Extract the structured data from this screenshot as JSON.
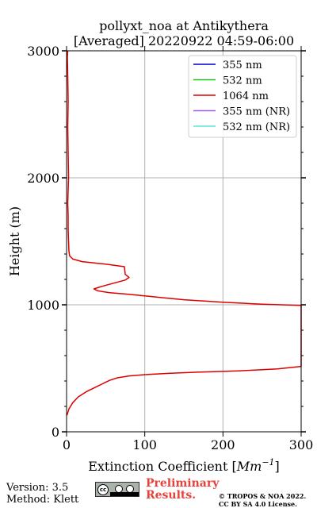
{
  "chart_data": {
    "type": "line",
    "title_line1": "pollyxt_noa at Antikythera",
    "title_line2": "[Averaged] 20220922 04:59-06:00",
    "xlabel_prefix": "Extinction Coefficient [",
    "xlabel_unit_base": "Mm",
    "xlabel_unit_exp": "−1",
    "xlabel_suffix": "]",
    "ylabel": "Height (m)",
    "xlim": [
      0,
      300
    ],
    "ylim": [
      0,
      3000
    ],
    "x_ticks": [
      "0",
      "100",
      "200",
      "300"
    ],
    "y_ticks": [
      "0",
      "1000",
      "2000",
      "3000"
    ],
    "grid": true,
    "legend_position": "top-right",
    "legend": [
      {
        "name": "355 nm",
        "color": "#0000cc"
      },
      {
        "name": "532 nm",
        "color": "#22bb22"
      },
      {
        "name": "1064 nm",
        "color": "#dd0000"
      },
      {
        "name": "355 nm (NR)",
        "color": "#9b59e8"
      },
      {
        "name": "532 nm (NR)",
        "color": "#5fe3d5"
      }
    ],
    "series": [
      {
        "name": "1064 nm",
        "color": "#dd0000",
        "x": [
          0.5,
          3,
          8,
          15,
          25,
          35,
          45,
          50,
          55,
          65,
          80,
          100,
          130,
          170,
          220,
          270,
          300,
          300,
          250,
          200,
          150,
          125,
          100,
          75,
          55,
          40,
          35,
          45,
          60,
          75,
          80,
          75,
          74,
          50,
          20,
          8,
          4,
          3,
          2.5,
          2,
          2,
          1.5,
          2,
          2.5,
          2,
          1.5,
          2,
          1.5,
          1,
          1.5
        ],
        "y": [
          130,
          180,
          230,
          275,
          315,
          345,
          375,
          390,
          405,
          425,
          440,
          450,
          460,
          470,
          480,
          495,
          515,
          995,
          1005,
          1020,
          1040,
          1055,
          1070,
          1085,
          1095,
          1110,
          1125,
          1145,
          1170,
          1195,
          1215,
          1240,
          1300,
          1320,
          1340,
          1360,
          1385,
          1420,
          1500,
          1600,
          1700,
          1800,
          1900,
          2000,
          2200,
          2400,
          2600,
          2800,
          2950,
          3000
        ]
      }
    ]
  },
  "footer": {
    "version": "Version: 3.5",
    "method": "Method: Klett",
    "preliminary_line1": "Preliminary",
    "preliminary_line2": "Results.",
    "copyright_line1": "© TROPOS & NOA 2022.",
    "copyright_line2": "CC BY SA 4.0 License.",
    "license_badge_text": "cc"
  }
}
